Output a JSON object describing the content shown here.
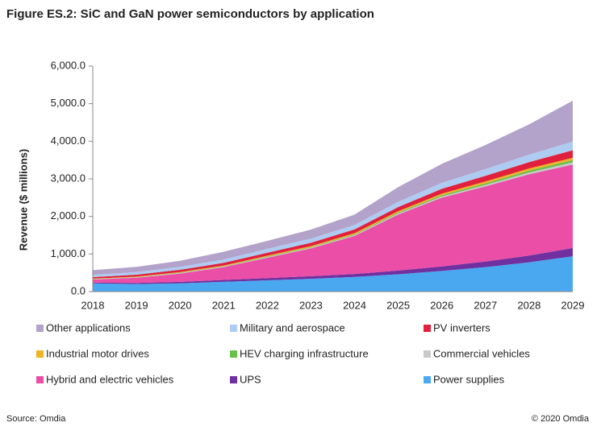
{
  "chart_data": {
    "type": "stacked_area",
    "title": "Figure ES.2: SiC and GaN power semiconductors by application",
    "y_label": "Revenue ($ millions)",
    "source": "Source: Omdia",
    "copyright": "© 2020 Omdia",
    "categories": [
      "2018",
      "2019",
      "2020",
      "2021",
      "2022",
      "2023",
      "2024",
      "2025",
      "2026",
      "2027",
      "2028",
      "2029"
    ],
    "ylim": [
      0,
      6000
    ],
    "yticks": [
      {
        "value": 0,
        "label": "0.0"
      },
      {
        "value": 1000,
        "label": "1,000.0"
      },
      {
        "value": 2000,
        "label": "2,000.0"
      },
      {
        "value": 3000,
        "label": "3,000.0"
      },
      {
        "value": 4000,
        "label": "4,000.0"
      },
      {
        "value": 5000,
        "label": "5,000.0"
      },
      {
        "value": 6000,
        "label": "6,000.0"
      }
    ],
    "series": [
      {
        "name": "Power supplies",
        "color": "#4aa8f0",
        "values": [
          220,
          200,
          220,
          260,
          300,
          340,
          390,
          460,
          550,
          650,
          780,
          940
        ]
      },
      {
        "name": "UPS",
        "color": "#7030a0",
        "values": [
          20,
          30,
          40,
          50,
          60,
          70,
          80,
          100,
          120,
          150,
          180,
          220
        ]
      },
      {
        "name": "Hybrid and electric vehicles",
        "color": "#ea4ea6",
        "values": [
          80,
          140,
          220,
          340,
          540,
          740,
          1010,
          1490,
          1830,
          2000,
          2160,
          2220
        ]
      },
      {
        "name": "Commercial vehicles",
        "color": "#c8c8c8",
        "values": [
          10,
          10,
          15,
          15,
          20,
          20,
          25,
          30,
          35,
          40,
          50,
          60
        ]
      },
      {
        "name": "HEV charging infrastructure",
        "color": "#6abf4b",
        "values": [
          5,
          5,
          10,
          10,
          15,
          15,
          20,
          25,
          30,
          40,
          50,
          60
        ]
      },
      {
        "name": "Industrial motor drives",
        "color": "#f0b323",
        "values": [
          10,
          15,
          15,
          20,
          20,
          25,
          30,
          35,
          40,
          50,
          55,
          60
        ]
      },
      {
        "name": "PV inverters",
        "color": "#e0203c",
        "values": [
          40,
          50,
          60,
          70,
          80,
          90,
          100,
          110,
          130,
          150,
          170,
          200
        ]
      },
      {
        "name": "Military and aerospace",
        "color": "#aecbf2",
        "values": [
          60,
          70,
          80,
          90,
          100,
          110,
          120,
          140,
          160,
          180,
          200,
          230
        ]
      },
      {
        "name": "Other applications",
        "color": "#b3a2c9",
        "values": [
          125,
          140,
          160,
          205,
          215,
          240,
          275,
          390,
          505,
          640,
          805,
          1090
        ]
      }
    ]
  }
}
